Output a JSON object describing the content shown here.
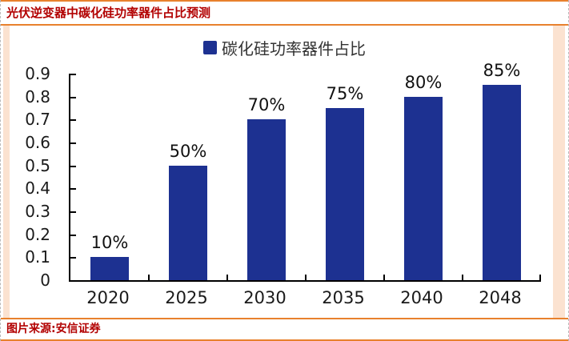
{
  "header": {
    "title": "光伏逆变器中碳化硅功率器件占比预测"
  },
  "footer": {
    "source": "图片来源:安信证券"
  },
  "colors": {
    "bar": "#1d3191",
    "accent_orange": "#e8812d",
    "title_red": "#b20000",
    "side_strip_peach": "#fbe2d0"
  },
  "chart_data": {
    "type": "bar",
    "title": "碳化硅功率器件占比",
    "categories": [
      "2020",
      "2025",
      "2030",
      "2035",
      "2040",
      "2048"
    ],
    "values": [
      0.1,
      0.5,
      0.7,
      0.75,
      0.8,
      0.85
    ],
    "value_labels": [
      "10%",
      "50%",
      "70%",
      "75%",
      "80%",
      "85%"
    ],
    "xlabel": "",
    "ylabel": "",
    "ylim": [
      0,
      0.9
    ],
    "yticks": [
      "0.9",
      "0.8",
      "0.7",
      "0.6",
      "0.5",
      "0.4",
      "0.3",
      "0.2",
      "0.1",
      "0"
    ],
    "grid": false,
    "legend_position": "top-center",
    "bar_color": "#1d3191"
  }
}
